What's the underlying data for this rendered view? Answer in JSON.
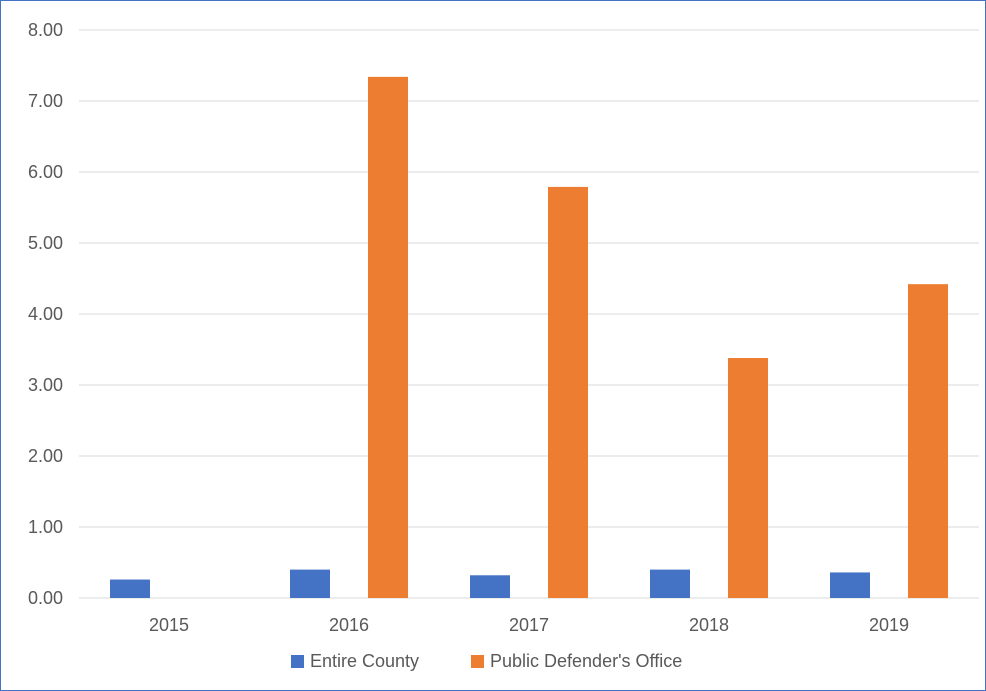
{
  "chart_data": {
    "type": "bar",
    "categories": [
      "2015",
      "2016",
      "2017",
      "2018",
      "2019"
    ],
    "series": [
      {
        "name": "Entire County",
        "values": [
          0.26,
          0.4,
          0.32,
          0.4,
          0.36
        ],
        "color": "#4472c4"
      },
      {
        "name": "Public Defender's Office",
        "values": [
          0,
          7.34,
          5.79,
          3.38,
          4.42
        ],
        "color": "#ed7d31"
      }
    ],
    "ylim": [
      0,
      8
    ],
    "yticks": [
      "0.00",
      "1.00",
      "2.00",
      "3.00",
      "4.00",
      "5.00",
      "6.00",
      "7.00",
      "8.00"
    ],
    "title": "",
    "xlabel": "",
    "ylabel": "",
    "grid": true,
    "legend_position": "bottom",
    "colors": {
      "gridline": "#d9d9d9",
      "border": "#4472c4",
      "text": "#595959"
    }
  }
}
